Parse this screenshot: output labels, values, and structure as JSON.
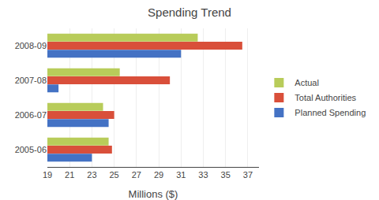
{
  "chart_data": {
    "type": "bar",
    "orientation": "horizontal",
    "title": "Spending Trend",
    "categories": [
      "2005-06",
      "2006-07",
      "2007-08",
      "2008-09"
    ],
    "series": [
      {
        "name": "Actual",
        "color": "#b8cc5a",
        "values": [
          24.5,
          24.0,
          25.5,
          32.5
        ]
      },
      {
        "name": "Total Authorities",
        "color": "#d94f3a",
        "values": [
          24.8,
          25.0,
          30.0,
          36.5
        ]
      },
      {
        "name": "Planned Spending",
        "color": "#4472c4",
        "values": [
          23.0,
          24.5,
          20.0,
          31.0
        ]
      }
    ],
    "xlabel": "Millions ($)",
    "xlim": [
      19,
      38
    ],
    "xticks": [
      19,
      21,
      23,
      25,
      27,
      29,
      31,
      33,
      35,
      37
    ],
    "grid": true,
    "legend": "right"
  }
}
